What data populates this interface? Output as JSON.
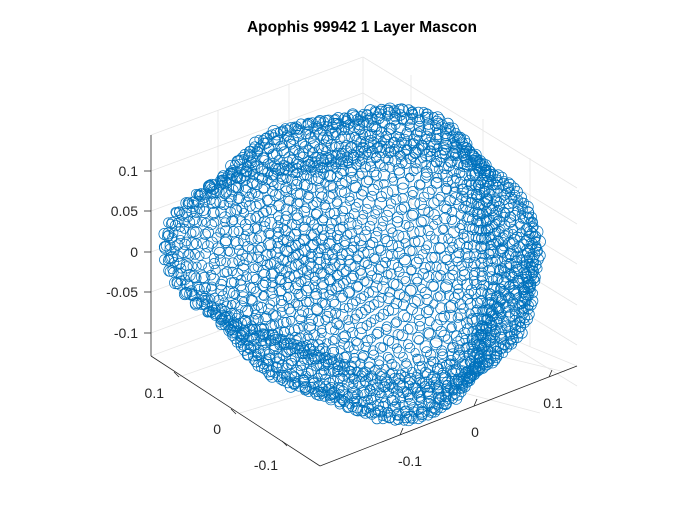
{
  "chart_data": {
    "type": "scatter3",
    "title": "Apophis 99942 1 Layer Mascon",
    "xlabel": "",
    "ylabel": "",
    "zlabel": "",
    "grid": true,
    "marker": "circle",
    "color": "#0072BD",
    "xlim": [
      -0.17,
      0.17
    ],
    "ylim": [
      -0.17,
      0.17
    ],
    "zlim": [
      -0.14,
      0.14
    ],
    "x_ticks": [
      "-0.1",
      "0",
      "0.1"
    ],
    "y_ticks": [
      "-0.1",
      "0",
      "0.1"
    ],
    "z_ticks": [
      "-0.1",
      "-0.05",
      "0",
      "0.05",
      "0.1"
    ],
    "body_semi_axes": [
      0.17,
      0.15,
      0.13
    ],
    "view": {
      "azimuth": -37.5,
      "elevation": 30
    }
  }
}
